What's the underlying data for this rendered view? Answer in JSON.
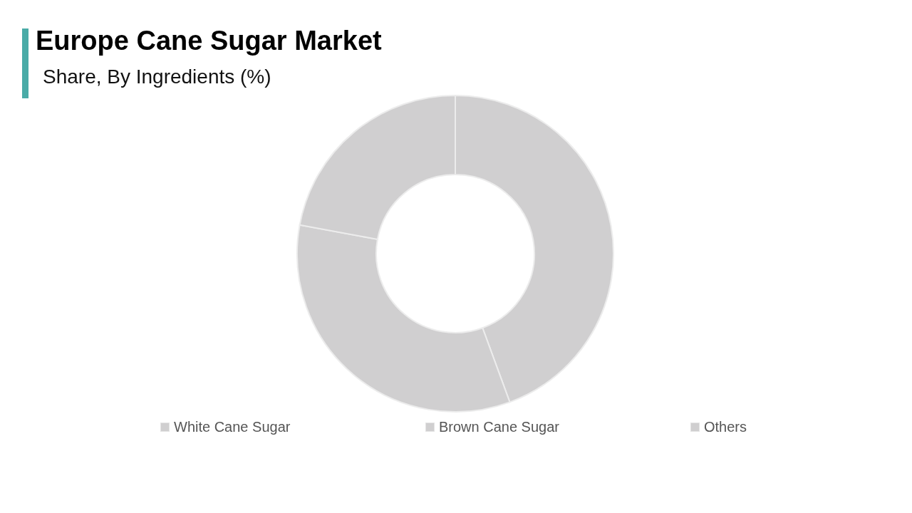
{
  "chart_data": {
    "type": "donut",
    "title": "Europe Cane Sugar Market",
    "subtitle": "Share, By Ingredients (%)",
    "categories": [
      "White Cane Sugar",
      "Brown Cane Sugar",
      "Others"
    ],
    "values": [
      44.4,
      33.5,
      22.1
    ],
    "colors": [
      "#d0cfd0",
      "#d0cfd0",
      "#d0cfd0"
    ],
    "legend": "bottom"
  }
}
